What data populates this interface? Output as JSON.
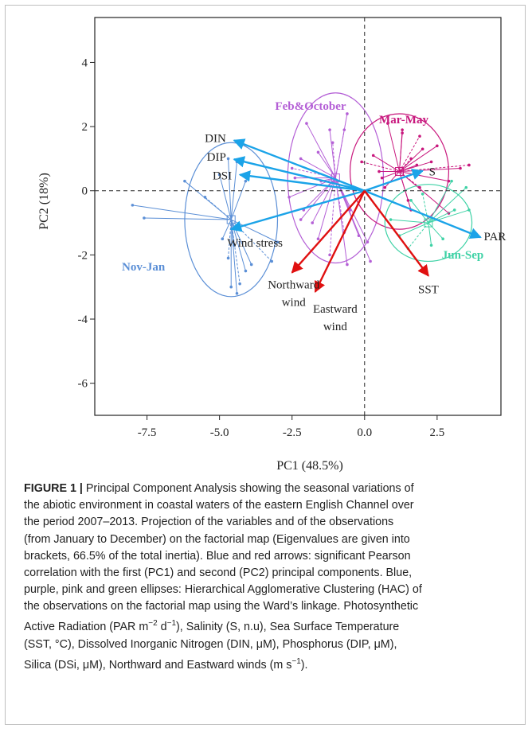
{
  "chart_data": {
    "type": "scatter",
    "title": "",
    "xlabel": "PC1 (48.5%)",
    "ylabel": "PC2 (18%)",
    "xlim": [
      -9.3,
      4.7
    ],
    "ylim": [
      -7.0,
      5.4
    ],
    "xticks": [
      -7.5,
      -5.0,
      -2.5,
      0.0,
      2.5
    ],
    "xtick_labels": [
      "-7.5",
      "-5.0",
      "-2.5",
      "0.0",
      "2.5"
    ],
    "yticks": [
      4,
      2,
      0,
      -2,
      -4,
      -6
    ],
    "ytick_labels": [
      "4",
      "2",
      "0",
      "-2",
      "-4",
      "-6"
    ],
    "grid": false,
    "reference_lines": {
      "x": 0,
      "y": 0,
      "style": "dashed"
    },
    "variable_arrows": [
      {
        "name": "DIN",
        "x": -4.5,
        "y": 1.57,
        "color": "#1aa3e8"
      },
      {
        "name": "DIP",
        "x": -4.5,
        "y": 0.98,
        "color": "#1aa3e8"
      },
      {
        "name": "DSI",
        "x": -4.3,
        "y": 0.5,
        "color": "#1aa3e8"
      },
      {
        "name": "Wind  stress",
        "x": -4.6,
        "y": -1.2,
        "color": "#1aa3e8"
      },
      {
        "name": "S",
        "x": 2.0,
        "y": 0.62,
        "color": "#1aa3e8"
      },
      {
        "name": "PAR",
        "x": 4.0,
        "y": -1.45,
        "color": "#1aa3e8"
      },
      {
        "name": "Northward wind",
        "x": -2.5,
        "y": -2.55,
        "color": "#e01010"
      },
      {
        "name": "Eastward wind",
        "x": -1.7,
        "y": -3.15,
        "color": "#e01010"
      },
      {
        "name": "SST",
        "x": 2.2,
        "y": -2.65,
        "color": "#e01010"
      }
    ],
    "clusters": [
      {
        "name": "Nov-Jan",
        "color": "#5b8fd6",
        "center": [
          -4.6,
          -0.9
        ],
        "radii": [
          1.6,
          2.4
        ],
        "spokes": [
          [
            -8.0,
            -0.45
          ],
          [
            -7.6,
            -0.85
          ],
          [
            -6.2,
            0.3
          ],
          [
            -5.5,
            -0.2
          ],
          [
            -5.0,
            0.5
          ],
          [
            -4.6,
            -3.0
          ],
          [
            -4.4,
            -3.2
          ],
          [
            -4.3,
            -2.9
          ],
          [
            -3.9,
            -2.3
          ],
          [
            -4.1,
            -2.5
          ],
          [
            -3.0,
            -1.6
          ],
          [
            -3.2,
            -2.2
          ],
          [
            -4.9,
            -1.5
          ],
          [
            -4.4,
            0.9
          ],
          [
            -4.7,
            1.0
          ],
          [
            -4.7,
            -2.1
          ],
          [
            -4.5,
            -1.7
          ],
          [
            -4.1,
            0.3
          ]
        ]
      },
      {
        "name": "Feb&October",
        "color": "#b45fd6",
        "center": [
          -1.0,
          0.4
        ],
        "radii": [
          1.65,
          2.65
        ],
        "spokes": [
          [
            -2.0,
            2.1
          ],
          [
            -1.2,
            1.9
          ],
          [
            -0.6,
            2.4
          ],
          [
            -0.7,
            1.9
          ],
          [
            -1.6,
            1.2
          ],
          [
            -2.2,
            1.0
          ],
          [
            -2.1,
            -0.6
          ],
          [
            -2.5,
            0.7
          ],
          [
            -1.8,
            -1.0
          ],
          [
            -1.6,
            -1.5
          ],
          [
            -0.6,
            -2.3
          ],
          [
            -0.7,
            -1.3
          ],
          [
            -0.2,
            -1.4
          ],
          [
            0.2,
            -2.2
          ],
          [
            0.1,
            -1.6
          ],
          [
            -1.2,
            -2.0
          ],
          [
            -2.6,
            -0.2
          ],
          [
            -0.5,
            -0.6
          ],
          [
            -1.5,
            0.3
          ],
          [
            -1.1,
            1.5
          ],
          [
            -2.2,
            -0.9
          ],
          [
            -2.4,
            0.4
          ]
        ]
      },
      {
        "name": "Mar-May",
        "color": "#c8177d",
        "center": [
          1.2,
          0.6
        ],
        "radii": [
          1.7,
          1.8
        ],
        "spokes": [
          [
            0.8,
            2.1
          ],
          [
            1.3,
            1.8
          ],
          [
            1.3,
            1.9
          ],
          [
            1.9,
            1.7
          ],
          [
            2.0,
            1.3
          ],
          [
            2.5,
            1.4
          ],
          [
            3.3,
            0.7
          ],
          [
            3.6,
            0.8
          ],
          [
            2.9,
            0.3
          ],
          [
            1.8,
            0.8
          ],
          [
            0.3,
            1.1
          ],
          [
            -0.1,
            0.9
          ],
          [
            0.5,
            0.6
          ],
          [
            0.6,
            0.4
          ],
          [
            0.7,
            0.1
          ],
          [
            1.9,
            0.1
          ],
          [
            1.6,
            -0.6
          ],
          [
            1.5,
            -0.3
          ],
          [
            2.9,
            -0.7
          ],
          [
            1.6,
            1.0
          ],
          [
            2.3,
            0.9
          ]
        ]
      },
      {
        "name": "Jun-Sep",
        "color": "#3fd2a6",
        "center": [
          2.2,
          -1.0
        ],
        "radii": [
          1.5,
          1.2
        ],
        "spokes": [
          [
            3.5,
            0.1
          ],
          [
            3.1,
            -0.6
          ],
          [
            2.3,
            -1.7
          ],
          [
            1.5,
            -1.8
          ],
          [
            1.2,
            -1.4
          ],
          [
            0.9,
            -0.9
          ],
          [
            1.6,
            -0.3
          ],
          [
            2.0,
            -0.1
          ],
          [
            3.0,
            0.3
          ],
          [
            2.7,
            -1.5
          ],
          [
            3.6,
            -0.6
          ]
        ]
      }
    ]
  },
  "caption": {
    "label": "FIGURE 1 |",
    "lines": [
      " Principal Component Analysis showing the seasonal variations of",
      "the abiotic environment in coastal waters of the eastern English Channel over",
      "the period 2007–2013. Projection of the variables and of the observations",
      "(from January to December) on the factorial map (Eigenvalues are given into",
      "brackets, 66.5% of the total inertia). Blue and red arrows: significant Pearson",
      "correlation with the first (PC1) and second (PC2) principal components. Blue,",
      "purple, pink and green ellipses: Hierarchical Agglomerative Clustering (HAC) of",
      "the observations on the factorial map using the Ward’s linkage. Photosynthetic",
      "Active Radiation (PAR m−2 d−1), Salinity (S, n.u), Sea Surface Temperature",
      "(SST, °C), Dissolved Inorganic Nitrogen (DIN, μM), Phosphorus (DIP, μM),",
      "Silica (DSi, μM), Northward and Eastward winds (m s−1)."
    ]
  }
}
